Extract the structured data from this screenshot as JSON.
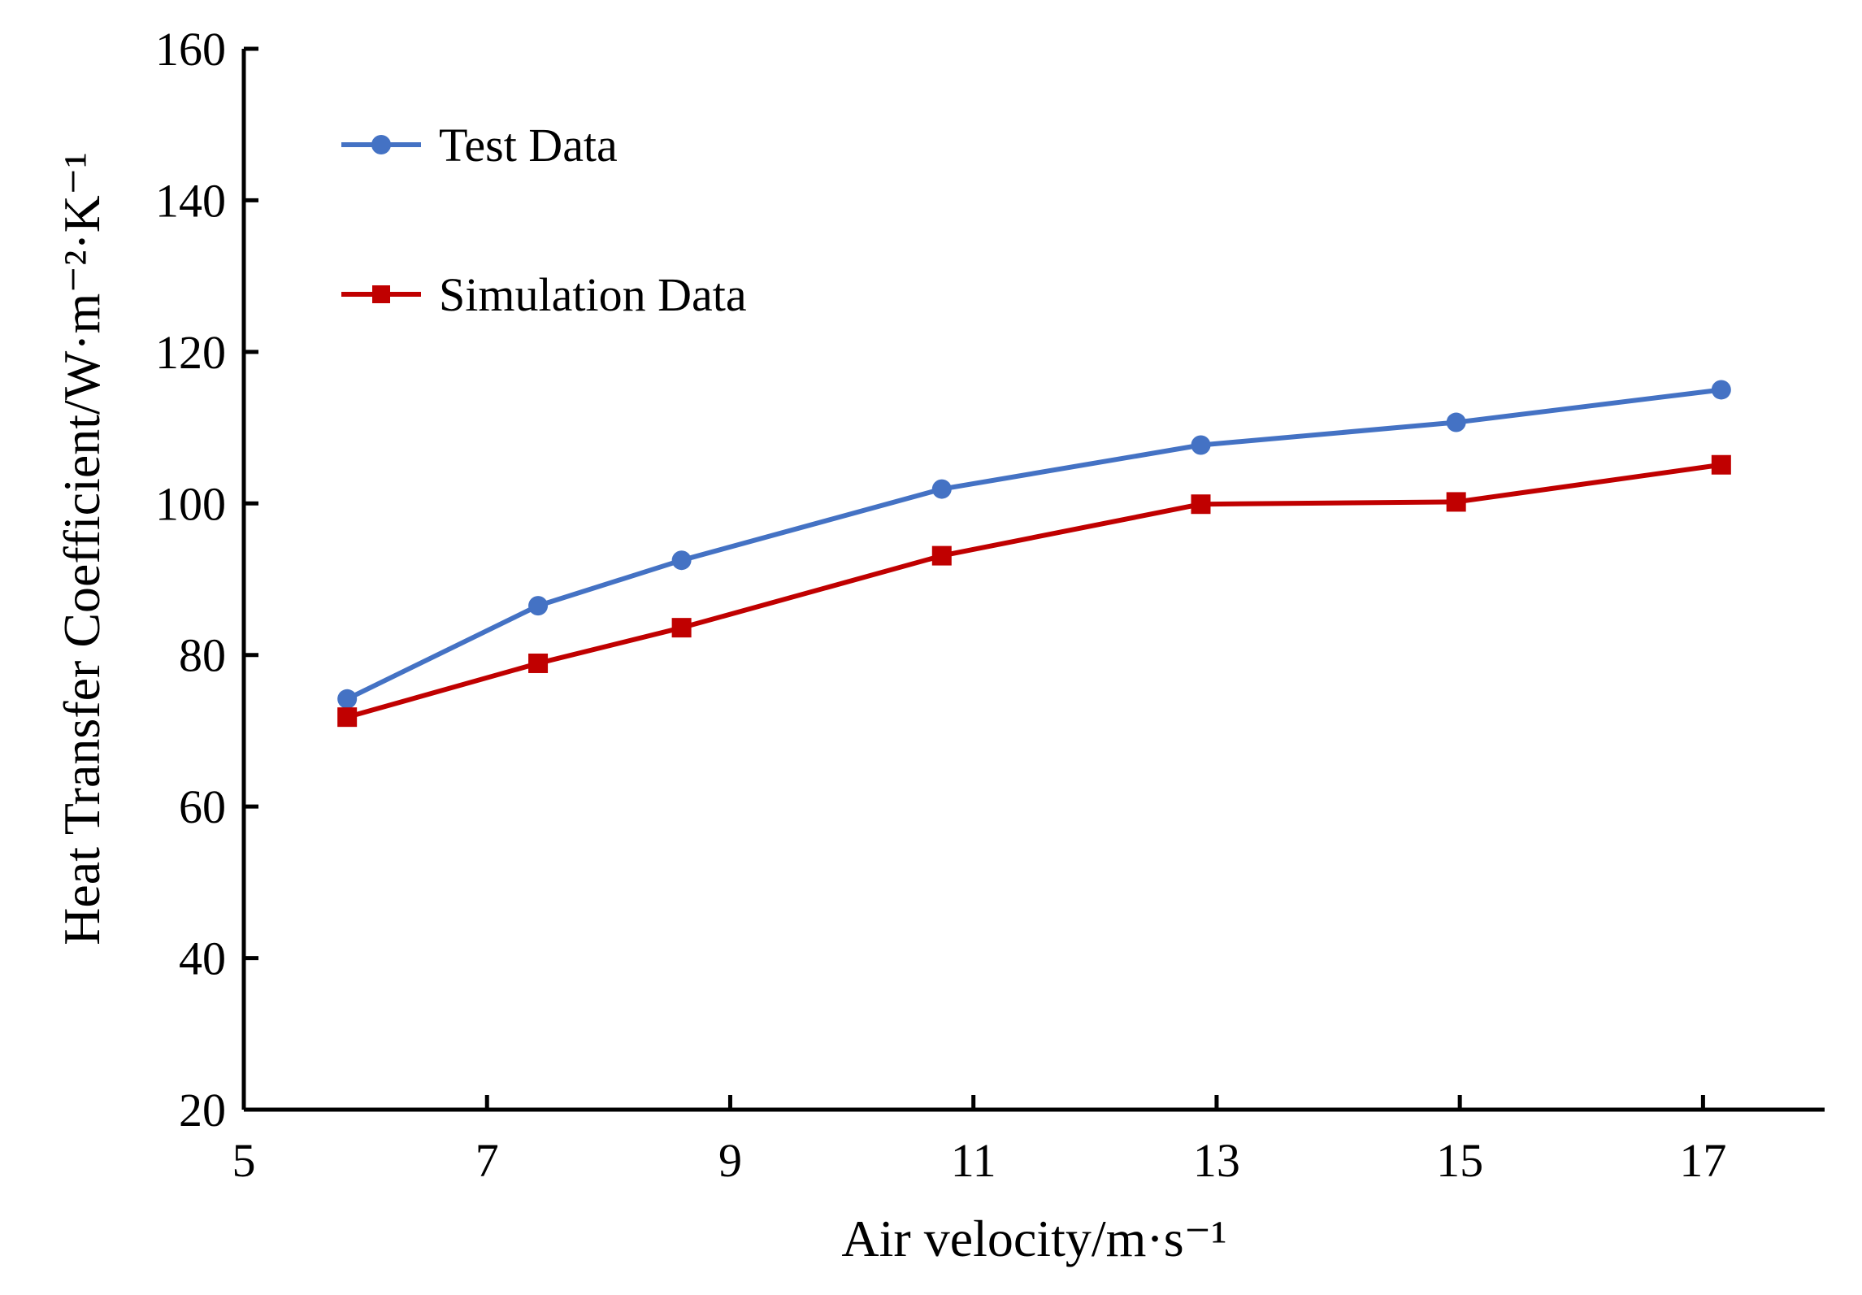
{
  "chart_data": {
    "type": "line",
    "title": "",
    "xlabel": "Air velocity/m·s⁻¹",
    "ylabel": "Heat Transfer Coefficient/W·m⁻²·K⁻¹",
    "xlim": [
      5,
      18
    ],
    "ylim": [
      20,
      160
    ],
    "xticks": [
      5,
      7,
      9,
      11,
      13,
      15,
      17
    ],
    "yticks": [
      20,
      40,
      60,
      80,
      100,
      120,
      140,
      160
    ],
    "grid": false,
    "legend_position": "top-left",
    "series": [
      {
        "name": "Test Data",
        "color": "#4472C4",
        "marker": "circle",
        "x": [
          5.85,
          7.42,
          8.6,
          10.74,
          12.87,
          14.97,
          17.15
        ],
        "y": [
          74.2,
          86.5,
          92.5,
          101.9,
          107.7,
          110.7,
          115.0
        ]
      },
      {
        "name": "Simulation Data",
        "color": "#C00000",
        "marker": "square",
        "x": [
          5.85,
          7.42,
          8.6,
          10.74,
          12.87,
          14.97,
          17.15
        ],
        "y": [
          71.8,
          78.9,
          83.6,
          93.1,
          99.9,
          100.2,
          105.1
        ]
      }
    ]
  }
}
